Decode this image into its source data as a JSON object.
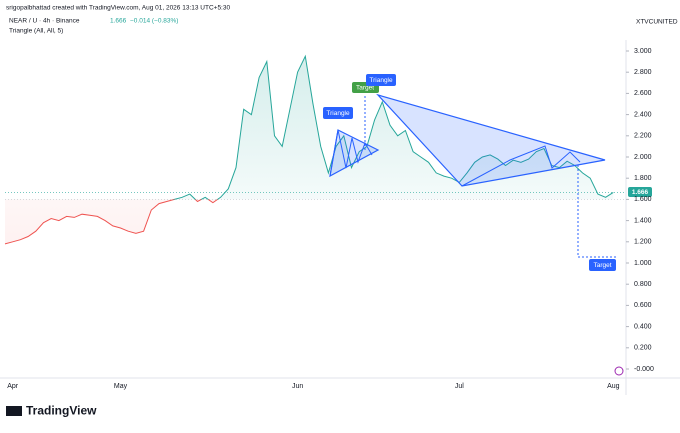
{
  "header": {
    "author_line": "srigopalbhattad created with TradingView.com, Aug 01, 2026 13:13 UTC+5:30",
    "symbol": "NEAR / U · 4h · Binance",
    "price": "1.666",
    "change": "−0.014 (−0.83%)",
    "indicator": "Triangle (All, All, 5)",
    "exchange_label": "XTVCUNITED"
  },
  "annotations": {
    "triangle_small": "Triangle",
    "triangle_big": "Triangle",
    "target_up": "Target",
    "target_down": "Target"
  },
  "footer": {
    "logo": "TradingView"
  },
  "chart_data": {
    "type": "line",
    "categories": [
      null,
      "Apr",
      null,
      null,
      null,
      null,
      null,
      null,
      null,
      null,
      null,
      null,
      null,
      null,
      null,
      "May",
      null,
      null,
      null,
      null,
      null,
      null,
      null,
      null,
      null,
      null,
      null,
      null,
      null,
      null,
      null,
      null,
      null,
      null,
      null,
      null,
      null,
      null,
      "Jun",
      null,
      null,
      null,
      null,
      null,
      null,
      null,
      null,
      null,
      null,
      null,
      null,
      null,
      null,
      null,
      null,
      null,
      null,
      null,
      null,
      "Jul",
      null,
      null,
      null,
      null,
      null,
      null,
      null,
      null,
      null,
      null,
      null,
      null,
      null,
      null,
      null,
      null,
      null,
      null,
      null,
      "Aug"
    ],
    "series": [
      {
        "name": "NEAR / U",
        "color": "#26a69a",
        "below_color": "#ef5350",
        "values": [
          1.18,
          1.2,
          1.22,
          1.25,
          1.3,
          1.38,
          1.42,
          1.4,
          1.44,
          1.43,
          1.46,
          1.45,
          1.44,
          1.4,
          1.35,
          1.33,
          1.3,
          1.28,
          1.3,
          1.5,
          1.56,
          1.58,
          1.6,
          1.62,
          1.65,
          1.58,
          1.62,
          1.57,
          1.62,
          1.7,
          1.9,
          2.45,
          2.4,
          2.75,
          2.9,
          2.2,
          2.1,
          2.45,
          2.8,
          2.95,
          2.5,
          2.1,
          1.85,
          2.1,
          2.2,
          1.9,
          2.05,
          2.1,
          2.35,
          2.52,
          2.3,
          2.2,
          2.25,
          2.05,
          2.0,
          1.95,
          1.85,
          1.82,
          1.8,
          1.76,
          1.85,
          1.95,
          2.0,
          2.02,
          1.98,
          1.92,
          1.97,
          1.95,
          1.98,
          2.05,
          2.08,
          1.92,
          1.9,
          1.96,
          1.92,
          1.85,
          1.8,
          1.65,
          1.62,
          1.666
        ]
      }
    ],
    "baseline": 1.6,
    "ylim": [
      -0.1,
      3.1
    ],
    "yticks": [
      {
        "value": 3.0,
        "label": "3.000"
      },
      {
        "value": 2.8,
        "label": "2.800"
      },
      {
        "value": 2.6,
        "label": "2.600"
      },
      {
        "value": 2.4,
        "label": "2.400"
      },
      {
        "value": 2.2,
        "label": "2.200"
      },
      {
        "value": 2.0,
        "label": "2.000"
      },
      {
        "value": 1.8,
        "label": "1.800"
      },
      {
        "value": 1.6,
        "label": "1.600"
      },
      {
        "value": 1.4,
        "label": "1.400"
      },
      {
        "value": 1.2,
        "label": "1.200"
      },
      {
        "value": 1.0,
        "label": "1.000"
      },
      {
        "value": 0.8,
        "label": "0.800"
      },
      {
        "value": 0.6,
        "label": "0.600"
      },
      {
        "value": 0.4,
        "label": "0.400"
      },
      {
        "value": 0.2,
        "label": "0.200"
      },
      {
        "value": 0,
        "label": "-0.000"
      }
    ],
    "grid": false
  }
}
